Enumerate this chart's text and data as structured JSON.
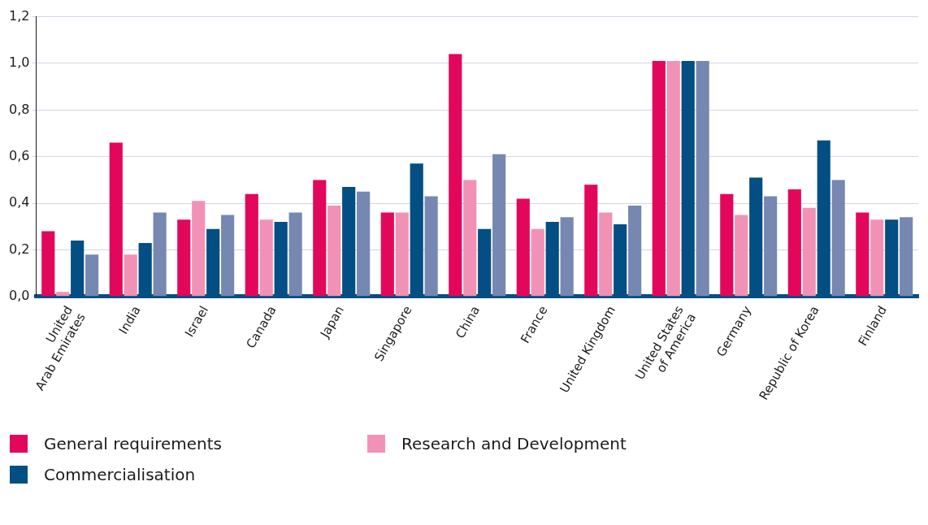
{
  "chart_data": {
    "type": "bar",
    "categories": [
      "United\nArab Emirates",
      "India",
      "Israel",
      "Canada",
      "Japan",
      "Singapore",
      "China",
      "France",
      "United Kingdom",
      "United States\nof America",
      "Germany",
      "Republic of Korea",
      "Finland"
    ],
    "series": [
      {
        "name": "General requirements",
        "color": "#e3075b",
        "values": [
          0.28,
          0.66,
          0.33,
          0.44,
          0.5,
          0.36,
          1.04,
          0.42,
          0.48,
          1.01,
          0.44,
          0.46,
          0.36
        ]
      },
      {
        "name": "Research and Development",
        "color": "#f291b6",
        "values": [
          0.02,
          0.18,
          0.41,
          0.33,
          0.39,
          0.36,
          0.5,
          0.29,
          0.36,
          1.01,
          0.35,
          0.38,
          0.33
        ]
      },
      {
        "name": "Commercialisation",
        "color": "#034e82",
        "values": [
          0.24,
          0.23,
          0.29,
          0.32,
          0.47,
          0.57,
          0.29,
          0.32,
          0.31,
          1.01,
          0.51,
          0.67,
          0.33
        ]
      },
      {
        "color": "#7688b1",
        "values": [
          0.18,
          0.36,
          0.35,
          0.36,
          0.45,
          0.43,
          0.61,
          0.34,
          0.39,
          1.01,
          0.43,
          0.5,
          0.34
        ]
      }
    ],
    "ylim": [
      0,
      1.2
    ],
    "yticks": [
      {
        "value": 0,
        "label": "0,0"
      },
      {
        "value": 0.2,
        "label": "0,2"
      },
      {
        "value": 0.4,
        "label": "0,4"
      },
      {
        "value": 0.6,
        "label": "0,6"
      },
      {
        "value": 0.8,
        "label": "0,8"
      },
      {
        "value": 1,
        "label": "1,0"
      },
      {
        "value": 1.2,
        "label": "1,2"
      }
    ],
    "grid": "y",
    "legend": "bottom"
  }
}
